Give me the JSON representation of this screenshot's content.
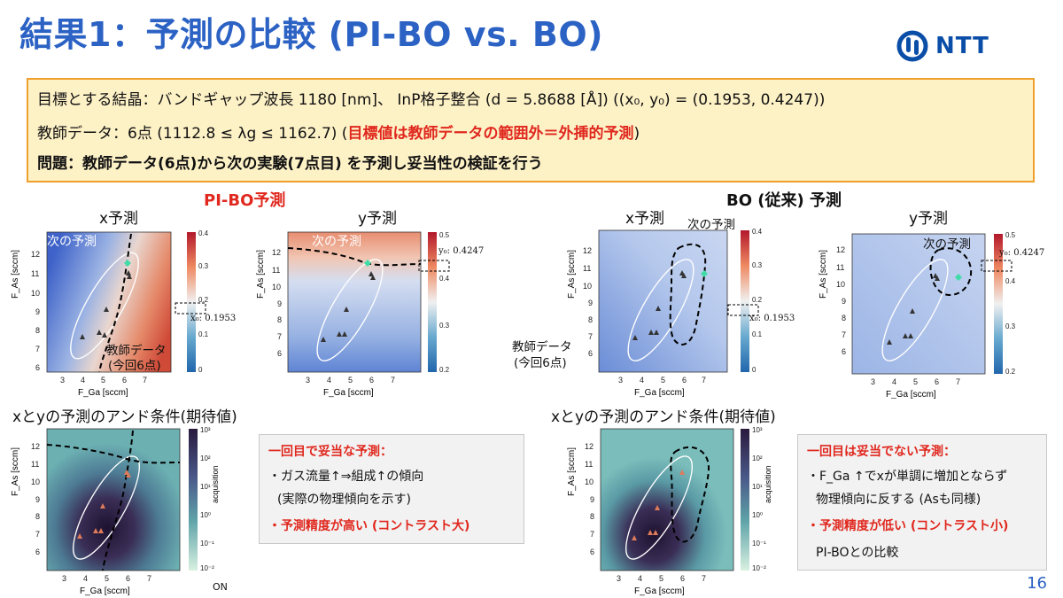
{
  "header": {
    "title": "結果1：予測の比較 (PI-BO vs. BO)",
    "logo_text": "NTT"
  },
  "goal_box": {
    "line1": "目標とする結晶：バンドギャップ波長 1180 [nm]、 InP格子整合 (d = 5.8688 [Å]) ((x₀, y₀) = (0.1953, 0.4247))",
    "line2_prefix": "教師データ：6点 (1112.8 ≤  λg ≤ 1162.7) (",
    "line2_red": "目標値は教師データの範囲外＝外挿的予測",
    "line2_suffix": ")",
    "line3": "問題：教師データ(6点)から次の実験(7点目) を予測し妥当性の検証を行う"
  },
  "sections": {
    "pibo_title": "PI-BO予測",
    "bo_title": "BO (従来) 予測"
  },
  "plots": {
    "x_title": "x予測",
    "y_title": "y予測",
    "and_title": "xとyの予測のアンド条件(期待値)",
    "x_ylabel": "F_As [sccm]",
    "x_xlabel": "F_Ga [sccm]",
    "x0_label": "x₀: 0.1953",
    "y0_label": "y₀: 0.4247",
    "next_label": "次の予測",
    "training_label_1": "教師データ",
    "training_label_2": "(今回6点)",
    "acq_label": "acquisition",
    "x_ticks": [
      "3",
      "4",
      "5",
      "6",
      "7"
    ],
    "y_ticks": [
      "6",
      "7",
      "8",
      "9",
      "10",
      "11",
      "12"
    ],
    "cbar_x_ticks": [
      "0.4",
      "0.3",
      "0.2",
      "0.1",
      "0"
    ],
    "cbar_y_ticks": [
      "0.5",
      "0.4",
      "0.3",
      "0.2"
    ],
    "cbar_acq_ticks": [
      "10³",
      "10²",
      "10¹",
      "10⁰",
      "10⁻¹",
      "10⁻²"
    ],
    "stray_text": "ON"
  },
  "notes": {
    "pibo": {
      "heading": "一回目で妥当な予測：",
      "line1": "・ガス流量↑⇒組成↑の傾向",
      "line2": "(実際の物理傾向を示す)",
      "line3": "・予測精度が高い (コントラスト大)"
    },
    "bo": {
      "heading": "一回目は妥当でない予測：",
      "line1": "・F_Ga ↑でxが単調に増加とならず",
      "line2": "物理傾向に反する (Asも同様)",
      "line3": "・予測精度が低い (コントラスト小)",
      "line4": "PI-BOとの比較"
    }
  },
  "page_number": "16"
}
